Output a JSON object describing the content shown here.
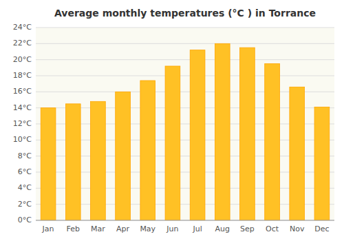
{
  "chart_data": {
    "type": "bar",
    "title": "Average monthly temperatures (°C ) in Torrance",
    "categories": [
      "Jan",
      "Feb",
      "Mar",
      "Apr",
      "May",
      "Jun",
      "Jul",
      "Aug",
      "Sep",
      "Oct",
      "Nov",
      "Dec"
    ],
    "values": [
      14.0,
      14.5,
      14.8,
      16.0,
      17.4,
      19.2,
      21.2,
      22.0,
      21.5,
      19.5,
      16.6,
      14.1
    ],
    "color": "#FFC125",
    "ylim": [
      0,
      24
    ],
    "yticks": [
      {
        "value": 0,
        "label": "0°C"
      },
      {
        "value": 2,
        "label": "2°C"
      },
      {
        "value": 4,
        "label": "4°C"
      },
      {
        "value": 6,
        "label": "6°C"
      },
      {
        "value": 8,
        "label": "8°C"
      },
      {
        "value": 10,
        "label": "10°C"
      },
      {
        "value": 12,
        "label": "12°C"
      },
      {
        "value": 14,
        "label": "14°C"
      },
      {
        "value": 16,
        "label": "16°C"
      },
      {
        "value": 18,
        "label": "18°C"
      },
      {
        "value": 20,
        "label": "20°C"
      },
      {
        "value": 22,
        "label": "22°C"
      },
      {
        "value": 24,
        "label": "24°C"
      }
    ],
    "grid": true
  }
}
